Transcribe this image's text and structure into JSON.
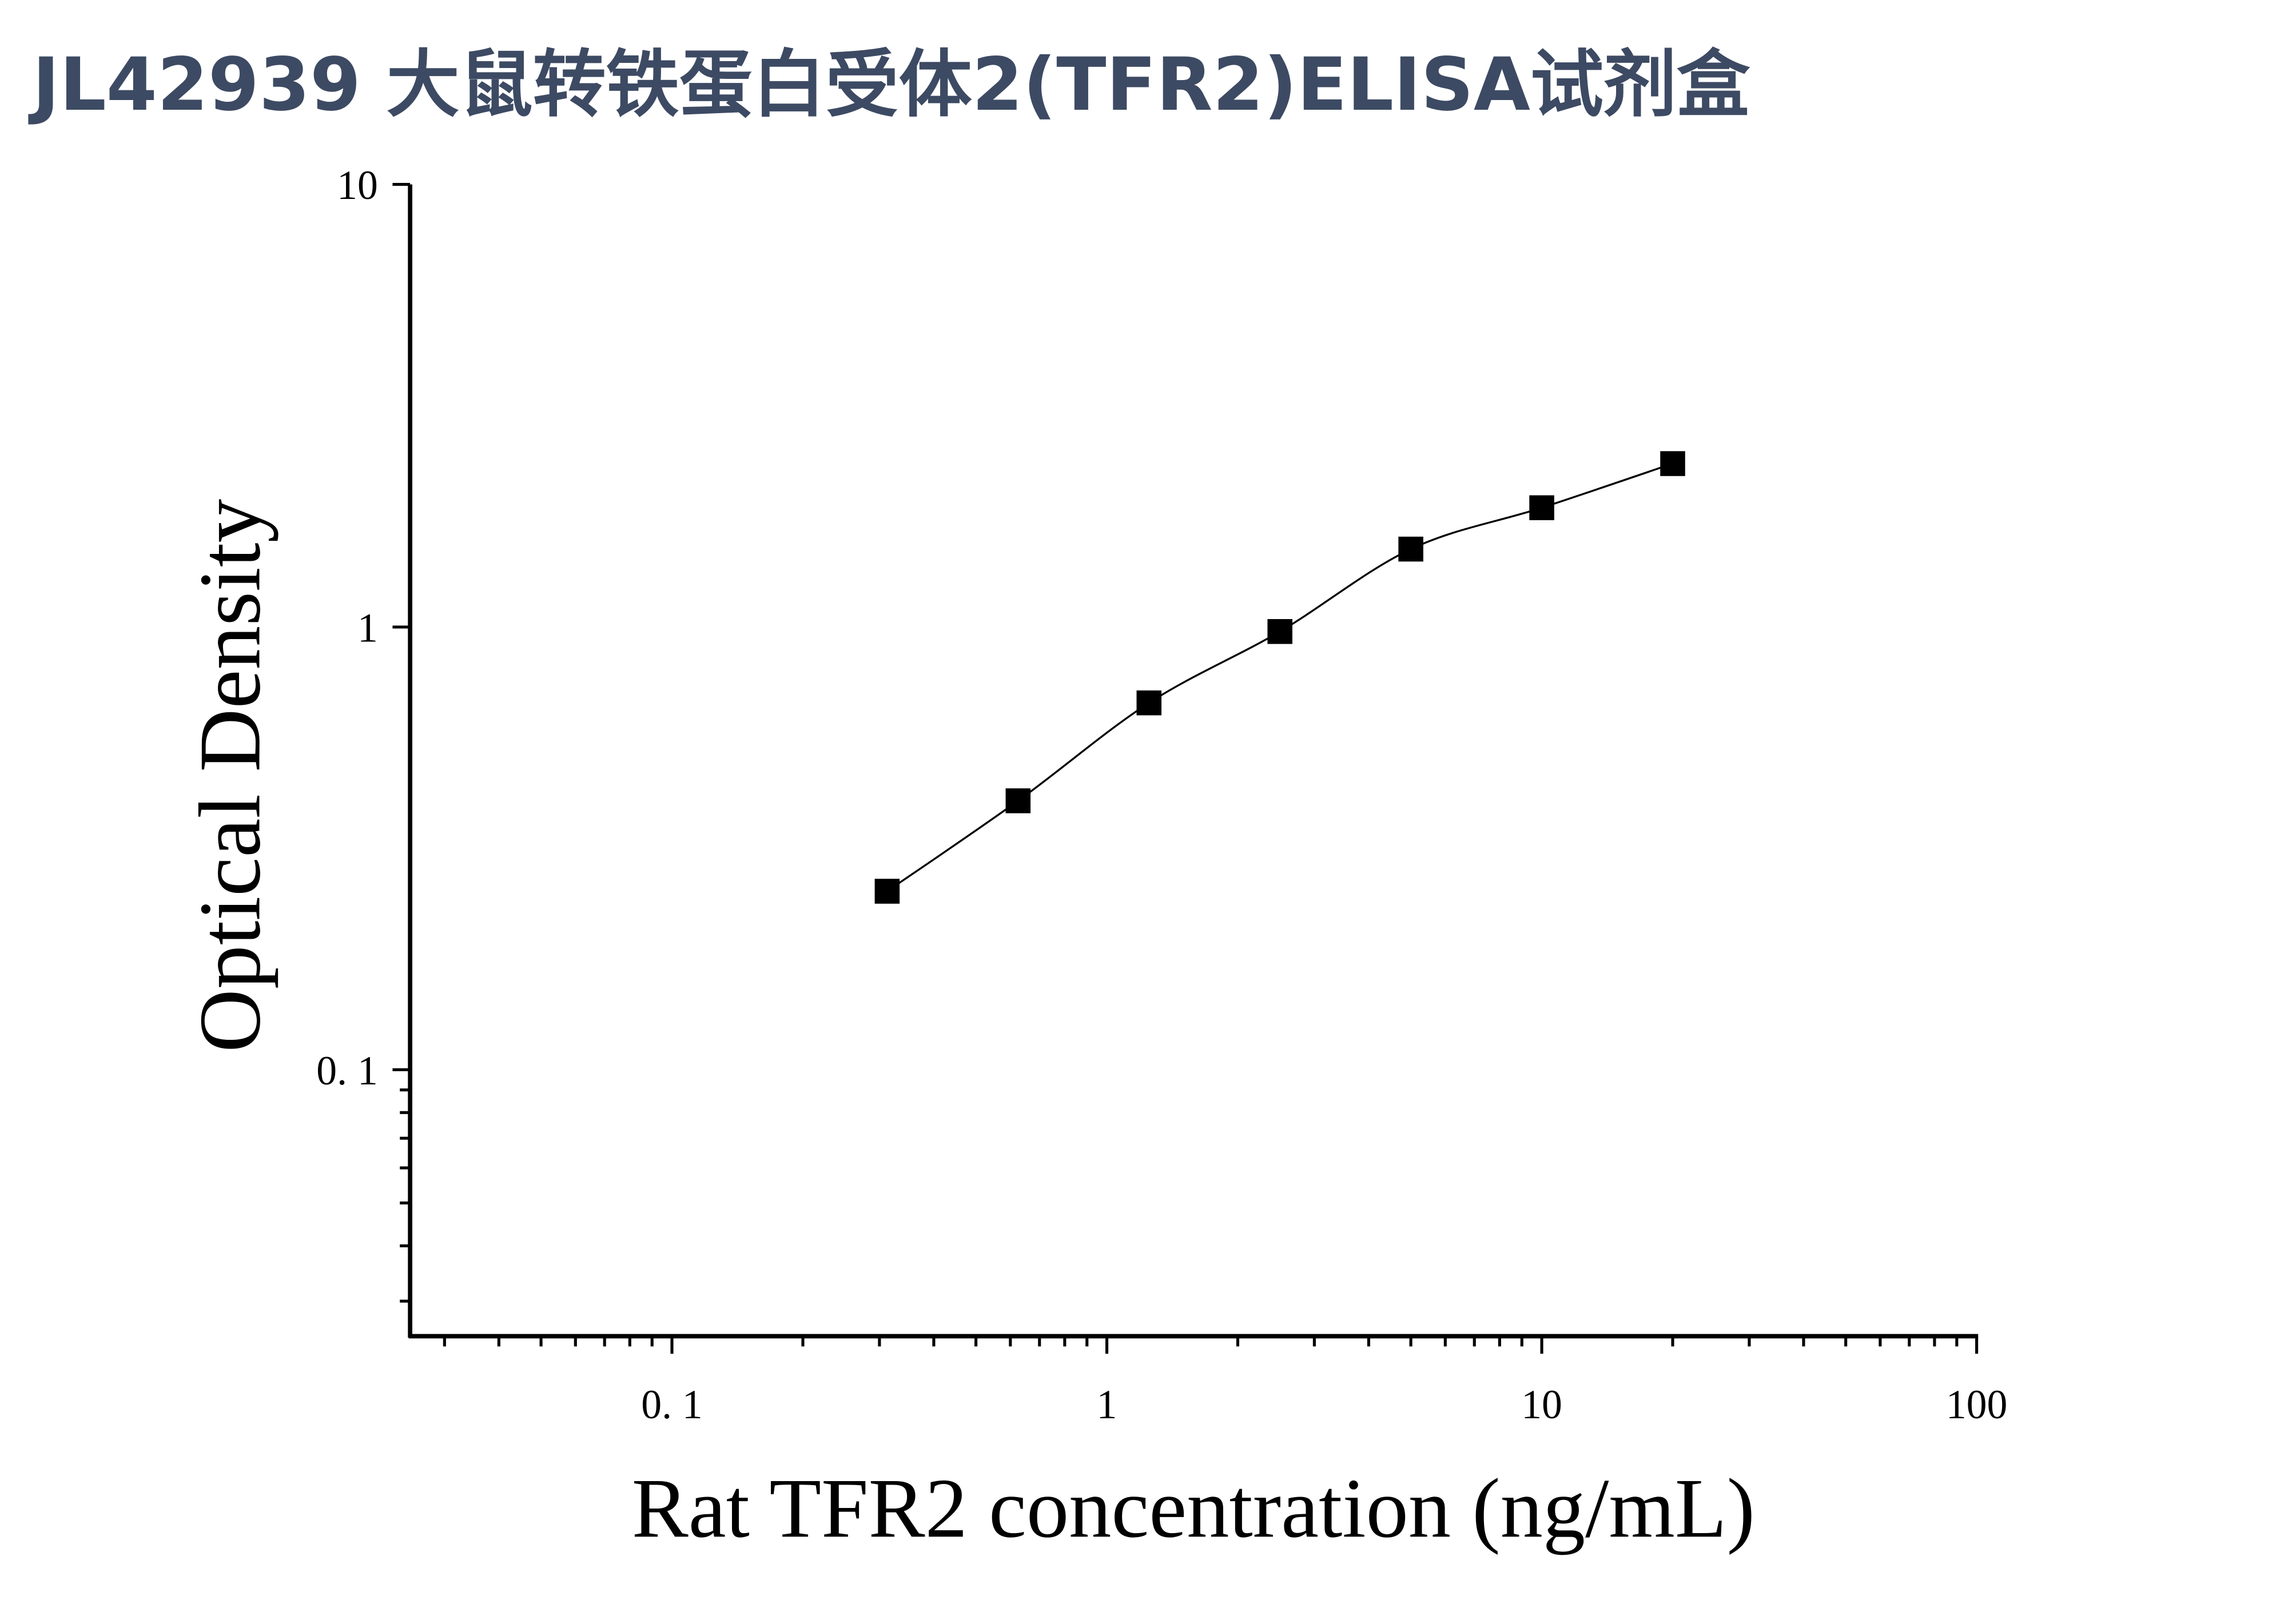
{
  "chart_data": {
    "type": "scatter",
    "title": "JL42939 大鼠转铁蛋白受体2(TFR2)ELISA试剂盒",
    "x_label": "Rat TFR2 concentration (ng/mL)",
    "y_label": "Optical Density",
    "x": [
      0.3125,
      0.625,
      1.25,
      2.5,
      5,
      10,
      20
    ],
    "series": [
      {
        "color": "#000000",
        "values": [
          0.253,
          0.405,
          0.674,
          0.977,
          1.5,
          1.86,
          2.34
        ]
      }
    ],
    "xscale": "log",
    "yscale": "log",
    "xlim": [
      0.025,
      100
    ],
    "ylim": [
      0.025,
      10
    ],
    "xticks": [
      {
        "value": 0.1,
        "label": "0. 1"
      },
      1,
      10,
      100
    ],
    "yticks": [
      {
        "value": 0.1,
        "label": "0. 1"
      },
      1,
      10
    ],
    "grid": false
  }
}
